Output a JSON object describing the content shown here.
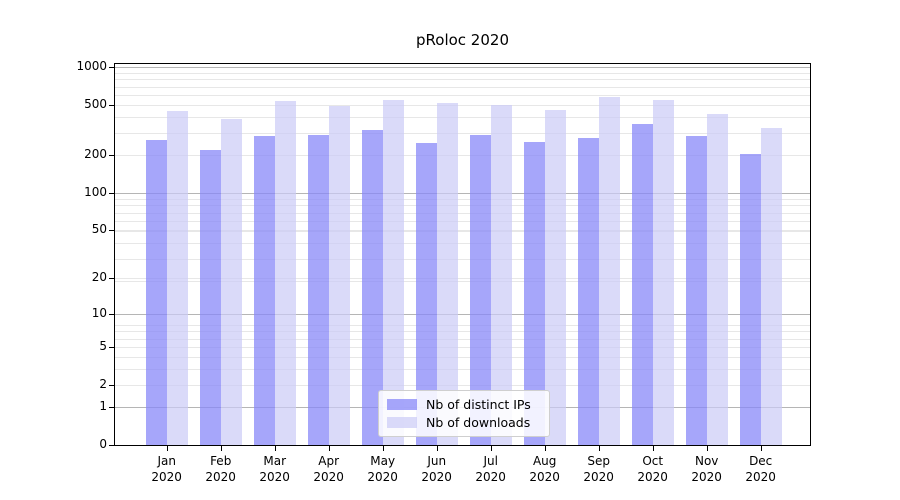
{
  "chart_data": {
    "type": "bar",
    "title": "pRoloc 2020",
    "categories": [
      "Jan",
      "Feb",
      "Mar",
      "Apr",
      "May",
      "Jun",
      "Jul",
      "Aug",
      "Sep",
      "Oct",
      "Nov",
      "Dec"
    ],
    "x_sub_label": "2020",
    "series": [
      {
        "name": "Nb of distinct IPs",
        "color": "#8888f8",
        "values": [
          265,
          220,
          281,
          287,
          318,
          250,
          290,
          252,
          273,
          354,
          281,
          203
        ]
      },
      {
        "name": "Nb of downloads",
        "color": "#cacaf7",
        "values": [
          446,
          388,
          535,
          490,
          547,
          521,
          496,
          454,
          578,
          551,
          425,
          328
        ]
      }
    ],
    "yscale": "log1p",
    "y_ticks": [
      0,
      1,
      2,
      5,
      10,
      20,
      50,
      100,
      200,
      500,
      1000
    ],
    "ylim": [
      0,
      1000
    ],
    "grid": true,
    "legend_position": "lower center",
    "colors": {
      "major_grid": "#b5b5b5",
      "minor_grid": "#e7e7e7",
      "axis": "#000000"
    }
  }
}
